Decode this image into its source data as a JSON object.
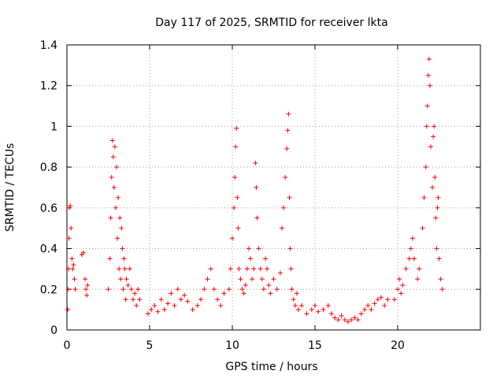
{
  "chart_data": {
    "type": "scatter",
    "title": "Day 117 of 2025, SRMTID for receiver lkta",
    "xlabel": "GPS time / hours",
    "ylabel": "SRMTID / TECUs",
    "xlim": [
      0,
      25
    ],
    "ylim": [
      0,
      1.4
    ],
    "xticks": [
      0,
      5,
      10,
      15,
      20
    ],
    "xtick_labels": [
      "0",
      "5",
      "10",
      "15",
      "20"
    ],
    "yticks": [
      0,
      0.2,
      0.4,
      0.6,
      0.8,
      1.0,
      1.2,
      1.4
    ],
    "ytick_labels": [
      "0",
      "0.2",
      "0.4",
      "0.6",
      "0.8",
      "1",
      "1.2",
      "1.4"
    ],
    "grid": true,
    "marker": "plus",
    "color": "#ff0000",
    "series": [
      {
        "name": "SRMTID",
        "points": [
          [
            0.05,
            0.1
          ],
          [
            0.08,
            0.2
          ],
          [
            0.1,
            0.3
          ],
          [
            0.12,
            0.45
          ],
          [
            0.15,
            0.6
          ],
          [
            0.2,
            0.61
          ],
          [
            0.25,
            0.5
          ],
          [
            0.3,
            0.35
          ],
          [
            0.35,
            0.3
          ],
          [
            0.4,
            0.32
          ],
          [
            0.45,
            0.25
          ],
          [
            0.5,
            0.2
          ],
          [
            0.9,
            0.37
          ],
          [
            1.0,
            0.38
          ],
          [
            1.1,
            0.25
          ],
          [
            1.15,
            0.2
          ],
          [
            1.2,
            0.17
          ],
          [
            1.25,
            0.22
          ],
          [
            2.5,
            0.2
          ],
          [
            2.6,
            0.35
          ],
          [
            2.65,
            0.55
          ],
          [
            2.7,
            0.75
          ],
          [
            2.75,
            0.93
          ],
          [
            2.8,
            0.85
          ],
          [
            2.85,
            0.7
          ],
          [
            2.9,
            0.9
          ],
          [
            2.95,
            0.6
          ],
          [
            3.0,
            0.8
          ],
          [
            3.05,
            0.45
          ],
          [
            3.1,
            0.65
          ],
          [
            3.15,
            0.3
          ],
          [
            3.2,
            0.55
          ],
          [
            3.25,
            0.25
          ],
          [
            3.3,
            0.5
          ],
          [
            3.35,
            0.4
          ],
          [
            3.4,
            0.2
          ],
          [
            3.45,
            0.35
          ],
          [
            3.5,
            0.3
          ],
          [
            3.55,
            0.15
          ],
          [
            3.6,
            0.25
          ],
          [
            3.7,
            0.22
          ],
          [
            3.8,
            0.3
          ],
          [
            3.9,
            0.2
          ],
          [
            4.0,
            0.15
          ],
          [
            4.1,
            0.18
          ],
          [
            4.2,
            0.12
          ],
          [
            4.3,
            0.2
          ],
          [
            4.4,
            0.15
          ],
          [
            4.9,
            0.08
          ],
          [
            5.1,
            0.1
          ],
          [
            5.3,
            0.12
          ],
          [
            5.5,
            0.09
          ],
          [
            5.7,
            0.15
          ],
          [
            5.9,
            0.1
          ],
          [
            6.1,
            0.13
          ],
          [
            6.3,
            0.18
          ],
          [
            6.5,
            0.12
          ],
          [
            6.7,
            0.2
          ],
          [
            6.9,
            0.15
          ],
          [
            7.1,
            0.17
          ],
          [
            7.3,
            0.14
          ],
          [
            7.6,
            0.1
          ],
          [
            7.9,
            0.12
          ],
          [
            8.1,
            0.15
          ],
          [
            8.3,
            0.2
          ],
          [
            8.5,
            0.25
          ],
          [
            8.7,
            0.3
          ],
          [
            8.9,
            0.2
          ],
          [
            9.1,
            0.15
          ],
          [
            9.3,
            0.12
          ],
          [
            9.5,
            0.18
          ],
          [
            9.8,
            0.2
          ],
          [
            9.9,
            0.3
          ],
          [
            10.0,
            0.45
          ],
          [
            10.1,
            0.6
          ],
          [
            10.15,
            0.75
          ],
          [
            10.2,
            0.9
          ],
          [
            10.25,
            0.99
          ],
          [
            10.3,
            0.65
          ],
          [
            10.35,
            0.5
          ],
          [
            10.4,
            0.3
          ],
          [
            10.5,
            0.25
          ],
          [
            10.6,
            0.2
          ],
          [
            10.7,
            0.18
          ],
          [
            10.8,
            0.22
          ],
          [
            10.9,
            0.3
          ],
          [
            11.0,
            0.4
          ],
          [
            11.1,
            0.35
          ],
          [
            11.2,
            0.25
          ],
          [
            11.3,
            0.3
          ],
          [
            11.4,
            0.82
          ],
          [
            11.45,
            0.7
          ],
          [
            11.5,
            0.55
          ],
          [
            11.6,
            0.4
          ],
          [
            11.7,
            0.3
          ],
          [
            11.8,
            0.25
          ],
          [
            11.9,
            0.2
          ],
          [
            12.0,
            0.35
          ],
          [
            12.1,
            0.3
          ],
          [
            12.2,
            0.22
          ],
          [
            12.3,
            0.18
          ],
          [
            12.5,
            0.25
          ],
          [
            12.7,
            0.2
          ],
          [
            12.9,
            0.28
          ],
          [
            13.0,
            0.5
          ],
          [
            13.1,
            0.6
          ],
          [
            13.2,
            0.75
          ],
          [
            13.3,
            0.89
          ],
          [
            13.35,
            0.98
          ],
          [
            13.4,
            1.06
          ],
          [
            13.45,
            0.65
          ],
          [
            13.5,
            0.4
          ],
          [
            13.55,
            0.3
          ],
          [
            13.6,
            0.2
          ],
          [
            13.7,
            0.15
          ],
          [
            13.8,
            0.12
          ],
          [
            13.9,
            0.18
          ],
          [
            14.0,
            0.1
          ],
          [
            14.2,
            0.12
          ],
          [
            14.5,
            0.08
          ],
          [
            14.8,
            0.1
          ],
          [
            15.0,
            0.12
          ],
          [
            15.2,
            0.09
          ],
          [
            15.5,
            0.1
          ],
          [
            15.8,
            0.12
          ],
          [
            16.0,
            0.08
          ],
          [
            16.2,
            0.06
          ],
          [
            16.4,
            0.05
          ],
          [
            16.6,
            0.07
          ],
          [
            16.8,
            0.05
          ],
          [
            17.0,
            0.04
          ],
          [
            17.2,
            0.05
          ],
          [
            17.4,
            0.06
          ],
          [
            17.6,
            0.05
          ],
          [
            17.8,
            0.08
          ],
          [
            18.0,
            0.1
          ],
          [
            18.2,
            0.12
          ],
          [
            18.4,
            0.1
          ],
          [
            18.6,
            0.13
          ],
          [
            18.8,
            0.15
          ],
          [
            19.0,
            0.16
          ],
          [
            19.2,
            0.12
          ],
          [
            19.4,
            0.15
          ],
          [
            19.8,
            0.15
          ],
          [
            20.0,
            0.2
          ],
          [
            20.1,
            0.25
          ],
          [
            20.2,
            0.18
          ],
          [
            20.3,
            0.22
          ],
          [
            20.5,
            0.3
          ],
          [
            20.7,
            0.35
          ],
          [
            20.8,
            0.4
          ],
          [
            20.9,
            0.45
          ],
          [
            21.0,
            0.35
          ],
          [
            21.2,
            0.25
          ],
          [
            21.3,
            0.3
          ],
          [
            21.5,
            0.5
          ],
          [
            21.6,
            0.65
          ],
          [
            21.7,
            0.8
          ],
          [
            21.75,
            1.0
          ],
          [
            21.8,
            1.1
          ],
          [
            21.85,
            1.25
          ],
          [
            21.9,
            1.33
          ],
          [
            21.95,
            1.2
          ],
          [
            22.0,
            0.9
          ],
          [
            22.1,
            0.7
          ],
          [
            22.15,
            0.95
          ],
          [
            22.2,
            1.0
          ],
          [
            22.25,
            0.75
          ],
          [
            22.3,
            0.55
          ],
          [
            22.35,
            0.4
          ],
          [
            22.4,
            0.6
          ],
          [
            22.45,
            0.65
          ],
          [
            22.5,
            0.35
          ],
          [
            22.6,
            0.25
          ],
          [
            22.7,
            0.2
          ]
        ]
      }
    ]
  }
}
